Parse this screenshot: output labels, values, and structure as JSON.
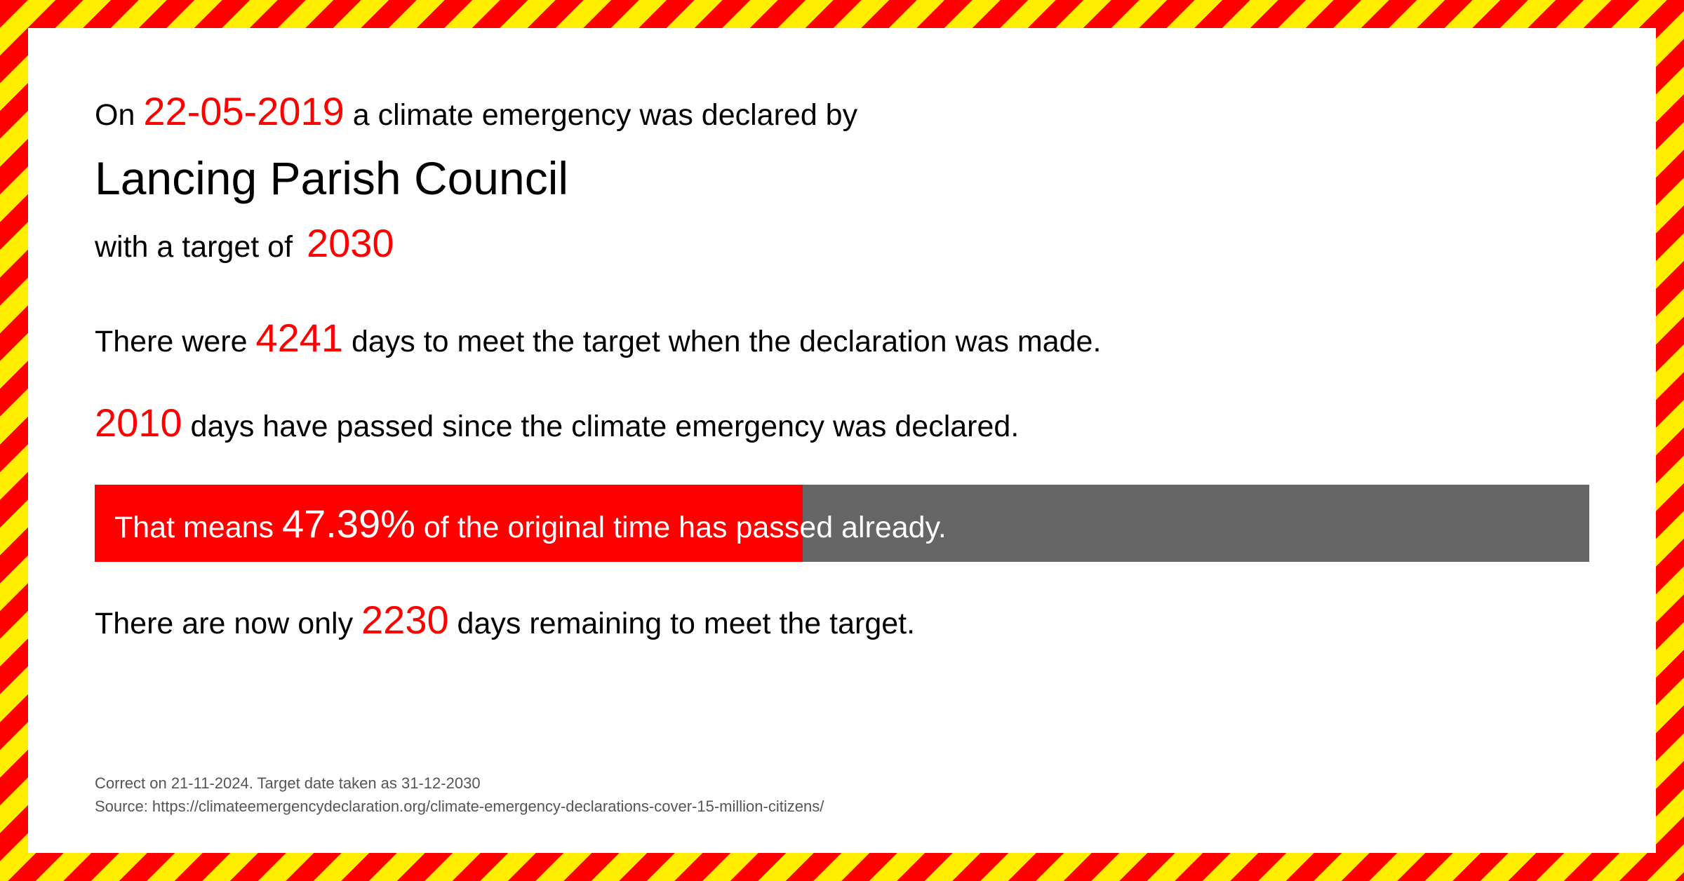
{
  "intro": {
    "prefix": "On ",
    "date": "22-05-2019",
    "suffix": " a climate emergency was declared by"
  },
  "council_name": "Lancing Parish Council",
  "target": {
    "prefix": "with a target of ",
    "year": "2030"
  },
  "days_total": {
    "prefix": "There were ",
    "value": "4241",
    "suffix": "  days to meet the target when the declaration was made."
  },
  "days_passed": {
    "value": "2010",
    "suffix": " days have passed since the climate emergency was declared."
  },
  "progress": {
    "prefix": "That means ",
    "percent": "47.39%",
    "suffix": " of the original time has passed already.",
    "fill_pct": 47.39,
    "fill_color": "#ff0000",
    "bg_color": "#666666"
  },
  "days_remaining": {
    "prefix": "There are now only ",
    "value": "2230",
    "suffix": " days remaining to meet the target."
  },
  "footer": {
    "line1": "Correct on 21-11-2024. Target date taken as 31-12-2030",
    "line2": "Source: https://climateemergencydeclaration.org/climate-emergency-declarations-cover-15-million-citizens/"
  },
  "style": {
    "accent_color": "#ff0000",
    "text_color": "#000000",
    "stripe_red": "#ff0000",
    "stripe_yellow": "#ffee00",
    "body_font_size": 43,
    "num_font_size": 56,
    "council_font_size": 66,
    "footer_font_size": 22
  }
}
